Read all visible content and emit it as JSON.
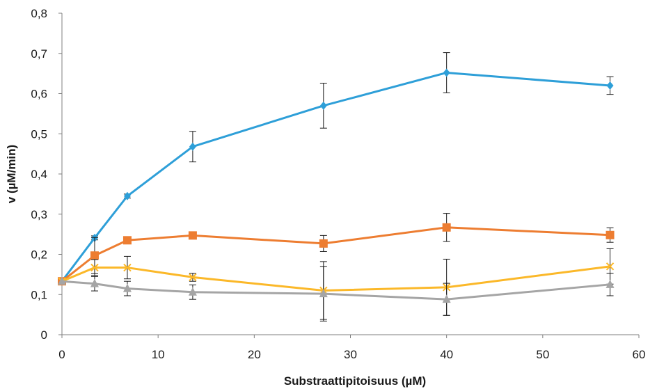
{
  "chart_data": {
    "type": "line",
    "title": "",
    "xlabel": "Substraattipitoisuus (µM)",
    "ylabel": "v (µM/min)",
    "xlim": [
      0,
      60
    ],
    "ylim": [
      0,
      0.8
    ],
    "x_ticks": [
      0,
      10,
      20,
      30,
      40,
      50,
      60
    ],
    "y_ticks": [
      0,
      0.1,
      0.2,
      0.3,
      0.4,
      0.5,
      0.6,
      0.7,
      0.8
    ],
    "x_tick_labels": [
      "0",
      "10",
      "20",
      "30",
      "40",
      "50",
      "60"
    ],
    "y_tick_labels": [
      "0",
      "0,1",
      "0,2",
      "0,3",
      "0,4",
      "0,5",
      "0,6",
      "0,7",
      "0,8"
    ],
    "grid": false,
    "legend": "none",
    "x": [
      0,
      3.4,
      6.8,
      13.6,
      27.2,
      40,
      57
    ],
    "series": [
      {
        "marker": "diamond",
        "color": "#2e9fd8",
        "values": [
          0.133,
          0.241,
          0.345,
          0.468,
          0.57,
          0.652,
          0.62
        ],
        "errors": [
          0,
          0.005,
          0.005,
          0.038,
          0.056,
          0.05,
          0.022
        ]
      },
      {
        "marker": "square",
        "color": "#ed7d31",
        "values": [
          0.133,
          0.197,
          0.235,
          0.247,
          0.227,
          0.267,
          0.248
        ],
        "errors": [
          0,
          0.045,
          0.005,
          0.005,
          0.02,
          0.035,
          0.018
        ]
      },
      {
        "marker": "x",
        "color": "#fbb829",
        "values": [
          0.133,
          0.167,
          0.167,
          0.143,
          0.11,
          0.118,
          0.17
        ],
        "errors": [
          0,
          0.02,
          0.028,
          0.01,
          0.072,
          0.07,
          0.044
        ]
      },
      {
        "marker": "triangle",
        "color": "#a5a5a5",
        "values": [
          0.133,
          0.127,
          0.115,
          0.106,
          0.102,
          0.088,
          0.125
        ],
        "errors": [
          0,
          0.018,
          0.018,
          0.018,
          0.068,
          0.04,
          0.028
        ]
      }
    ]
  }
}
